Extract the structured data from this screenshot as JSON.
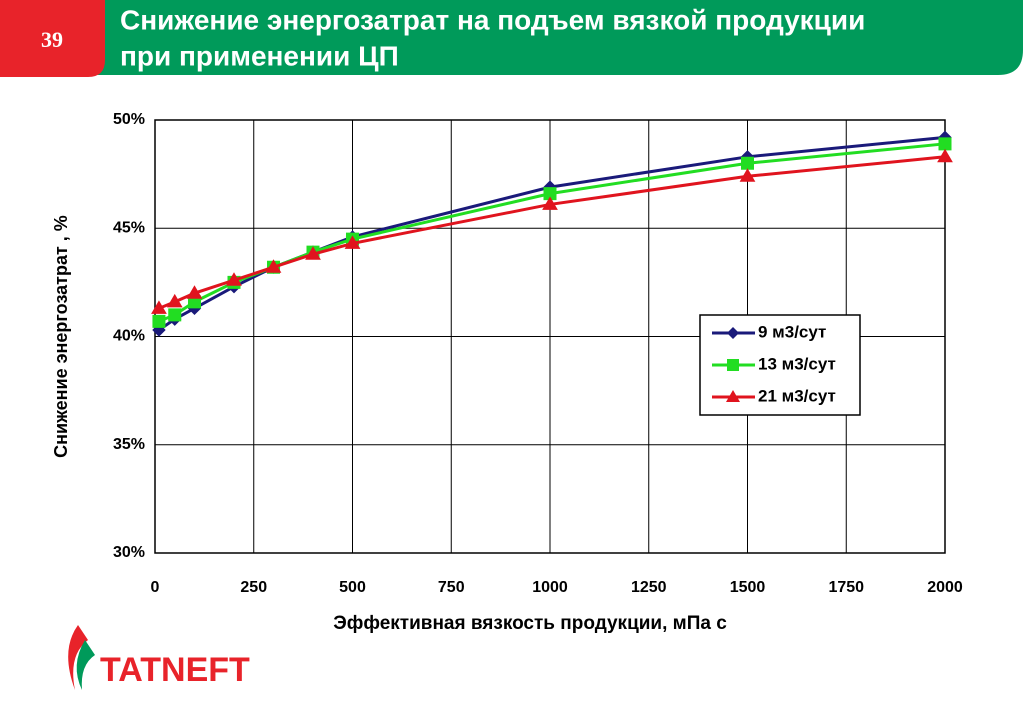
{
  "slide_number": "39",
  "header_title": [
    "Снижение энергозатрат на подъем вязкой продукции",
    "при применении ЦП"
  ],
  "logo_text": "TATNEFT",
  "chart_data": {
    "type": "line",
    "y_label": "Снижение энергозатрат , %",
    "x_label": "Эффективная вязкость продукции, мПа с",
    "x": [
      10,
      50,
      100,
      200,
      300,
      400,
      500,
      1000,
      1500,
      2000
    ],
    "series": [
      {
        "name": "9 м3/сут",
        "color": "#1a1a7a",
        "marker": "diamond",
        "values": [
          40.3,
          40.8,
          41.3,
          42.3,
          43.2,
          43.9,
          44.6,
          46.9,
          48.3,
          49.2
        ]
      },
      {
        "name": "13 м3/сут",
        "color": "#22dd22",
        "marker": "square",
        "values": [
          40.7,
          41.0,
          41.6,
          42.5,
          43.2,
          43.9,
          44.5,
          46.6,
          48.0,
          48.9
        ]
      },
      {
        "name": "21 м3/сут",
        "color": "#e0141e",
        "marker": "triangle",
        "values": [
          41.3,
          41.6,
          42.0,
          42.6,
          43.2,
          43.8,
          44.3,
          46.1,
          47.4,
          48.3
        ]
      }
    ],
    "xlim": [
      0,
      2000
    ],
    "xticks": [
      0,
      250,
      500,
      750,
      1000,
      1250,
      1500,
      1750,
      2000
    ],
    "ylim": [
      30,
      50
    ],
    "yticks": [
      {
        "value": 30,
        "label": "30%"
      },
      {
        "value": 35,
        "label": "35%"
      },
      {
        "value": 40,
        "label": "40%"
      },
      {
        "value": 45,
        "label": "45%"
      },
      {
        "value": 50,
        "label": "50%"
      }
    ],
    "grid": true,
    "legend": "right"
  }
}
